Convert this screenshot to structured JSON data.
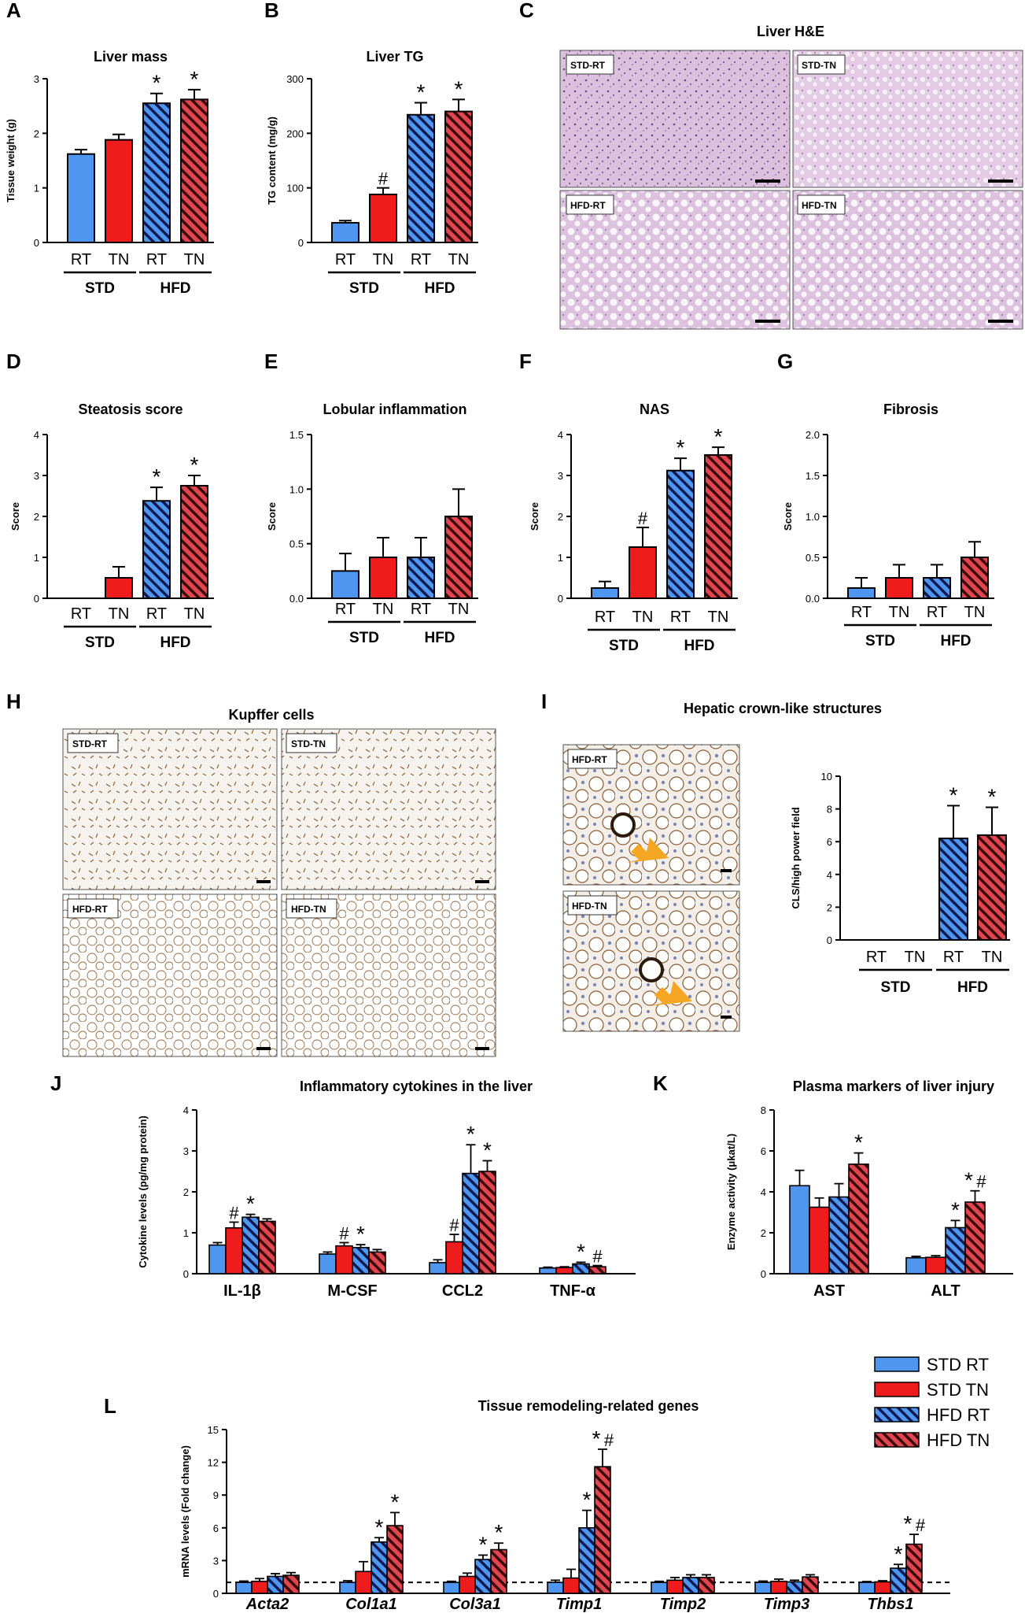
{
  "colors": {
    "std_rt": "#4f96f0",
    "std_tn": "#ee1c1c",
    "hfd_rt": "#4f96f0",
    "hfd_tn": "#e0464f",
    "star": "#000000",
    "arrow": "#f5a623",
    "he_tissue": "#e6cde6",
    "ihc_tissue": "#f7f1ec"
  },
  "panels": {
    "A": "A",
    "B": "B",
    "C": "C",
    "D": "D",
    "E": "E",
    "F": "F",
    "G": "G",
    "H": "H",
    "I": "I",
    "J": "J",
    "K": "K",
    "L": "L"
  },
  "groups": {
    "std": "STD",
    "hfd": "HFD"
  },
  "conditions": {
    "rt": "RT",
    "tn": "TN"
  },
  "legend": [
    "STD RT",
    "STD TN",
    "HFD RT",
    "HFD TN"
  ],
  "micrographs": {
    "he_title": "Liver H&E",
    "he_tags": [
      "STD-RT",
      "STD-TN",
      "HFD-RT",
      "HFD-TN"
    ],
    "kupffer_title": "Kupffer cells",
    "kupffer_tags": [
      "STD-RT",
      "STD-TN",
      "HFD-RT",
      "HFD-TN"
    ],
    "cls_title": "Hepatic crown-like structures",
    "cls_tags": [
      "HFD-RT",
      "HFD-TN"
    ]
  },
  "chart_data": [
    {
      "id": "A",
      "type": "bar",
      "title": "Liver mass",
      "ylabel": "Tissue weight (g)",
      "ylim": [
        0,
        3
      ],
      "yticks": [
        "0",
        "1",
        "2",
        "3"
      ],
      "values": [
        1.62,
        1.88,
        2.55,
        2.62
      ],
      "errors": [
        0.08,
        0.1,
        0.18,
        0.18
      ],
      "annotations": [
        "",
        "",
        "*",
        "*"
      ]
    },
    {
      "id": "B",
      "type": "bar",
      "title": "Liver TG",
      "ylabel": "TG content (mg/g)",
      "ylim": [
        0,
        300
      ],
      "yticks": [
        "0",
        "100",
        "200",
        "300"
      ],
      "values": [
        36,
        88,
        234,
        240
      ],
      "errors": [
        4,
        12,
        22,
        22
      ],
      "annotations": [
        "",
        "#",
        "*",
        "*"
      ]
    },
    {
      "id": "D",
      "type": "bar",
      "title": "Steatosis score",
      "ylabel": "Score",
      "ylim": [
        0,
        4
      ],
      "yticks": [
        "0",
        "1",
        "2",
        "3",
        "4"
      ],
      "values": [
        0,
        0.5,
        2.38,
        2.75
      ],
      "errors": [
        0,
        0.27,
        0.33,
        0.25
      ],
      "annotations": [
        "",
        "",
        "*",
        "*"
      ]
    },
    {
      "id": "E",
      "type": "bar",
      "title": "Lobular inflammation",
      "ylabel": "Score",
      "ylim": [
        0,
        1.5
      ],
      "yticks": [
        "0.0",
        "0.5",
        "1.0",
        "1.5"
      ],
      "values": [
        0.25,
        0.375,
        0.375,
        0.75
      ],
      "errors": [
        0.16,
        0.18,
        0.18,
        0.25
      ],
      "annotations": [
        "",
        "",
        "",
        ""
      ]
    },
    {
      "id": "F",
      "type": "bar",
      "title": "NAS",
      "ylabel": "Score",
      "ylim": [
        0,
        4
      ],
      "yticks": [
        "0",
        "1",
        "2",
        "3",
        "4"
      ],
      "values": [
        0.25,
        1.25,
        3.12,
        3.5
      ],
      "errors": [
        0.16,
        0.48,
        0.3,
        0.19
      ],
      "annotations": [
        "",
        "#",
        "*",
        "*"
      ]
    },
    {
      "id": "G",
      "type": "bar",
      "title": "Fibrosis",
      "ylabel": "Score",
      "ylim": [
        0,
        2
      ],
      "yticks": [
        "0.0",
        "0.5",
        "1.0",
        "1.5",
        "2.0"
      ],
      "values": [
        0.125,
        0.25,
        0.25,
        0.5
      ],
      "errors": [
        0.125,
        0.16,
        0.16,
        0.19
      ],
      "annotations": [
        "",
        "",
        "",
        ""
      ]
    },
    {
      "id": "I",
      "type": "bar",
      "title": "",
      "ylabel": "CLS/high power field",
      "ylim": [
        0,
        10
      ],
      "yticks": [
        "0",
        "2",
        "4",
        "6",
        "8",
        "10"
      ],
      "values": [
        0,
        0,
        6.2,
        6.4
      ],
      "errors": [
        0,
        0,
        2.0,
        1.7
      ],
      "annotations": [
        "",
        "",
        "*",
        "*"
      ]
    },
    {
      "id": "J",
      "type": "grouped_bar",
      "title": "Inflammatory cytokines in the liver",
      "ylabel": "Cytokine levels (pg/mg protein)",
      "ylim": [
        0,
        4
      ],
      "yticks": [
        "0",
        "1",
        "2",
        "3",
        "4"
      ],
      "categories": [
        "IL-1β",
        "M-CSF",
        "CCL2",
        "TNF-α"
      ],
      "series": [
        {
          "name": "STD RT",
          "values": [
            0.7,
            0.48,
            0.27,
            0.14
          ],
          "errors": [
            0.06,
            0.05,
            0.07,
            0.02
          ],
          "annotations": [
            "",
            "",
            "",
            ""
          ]
        },
        {
          "name": "STD TN",
          "values": [
            1.12,
            0.68,
            0.78,
            0.15
          ],
          "errors": [
            0.14,
            0.08,
            0.18,
            0.02
          ],
          "annotations": [
            "#",
            "#",
            "#",
            ""
          ]
        },
        {
          "name": "HFD RT",
          "values": [
            1.38,
            0.64,
            2.45,
            0.24
          ],
          "errors": [
            0.07,
            0.07,
            0.7,
            0.04
          ],
          "annotations": [
            "*",
            "*",
            "*",
            "*"
          ]
        },
        {
          "name": "HFD TN",
          "values": [
            1.28,
            0.53,
            2.5,
            0.17
          ],
          "errors": [
            0.06,
            0.06,
            0.26,
            0.03
          ],
          "annotations": [
            "",
            "",
            "*",
            "#"
          ]
        }
      ]
    },
    {
      "id": "K",
      "type": "grouped_bar",
      "title": "Plasma markers of liver injury",
      "ylabel": "Enzyme activity (μkat/L)",
      "ylim": [
        0,
        8
      ],
      "yticks": [
        "0",
        "2",
        "4",
        "6",
        "8"
      ],
      "categories": [
        "AST",
        "ALT"
      ],
      "series": [
        {
          "name": "STD RT",
          "values": [
            4.3,
            0.78
          ],
          "errors": [
            0.75,
            0.07
          ],
          "annotations": [
            "",
            ""
          ]
        },
        {
          "name": "STD TN",
          "values": [
            3.25,
            0.8
          ],
          "errors": [
            0.45,
            0.08
          ],
          "annotations": [
            "",
            ""
          ]
        },
        {
          "name": "HFD RT",
          "values": [
            3.75,
            2.25
          ],
          "errors": [
            0.65,
            0.35
          ],
          "annotations": [
            "",
            "*"
          ]
        },
        {
          "name": "HFD TN",
          "values": [
            5.35,
            3.5
          ],
          "errors": [
            0.55,
            0.55
          ],
          "annotations": [
            "*",
            "*#"
          ]
        }
      ]
    },
    {
      "id": "L",
      "type": "grouped_bar",
      "title": "Tissue remodeling-related genes",
      "ylabel": "mRNA levels (Fold change)",
      "ylim": [
        0,
        15
      ],
      "yticks": [
        "0",
        "3",
        "6",
        "9",
        "12",
        "15"
      ],
      "reference_line": 1,
      "categories": [
        "Acta2",
        "Col1a1",
        "Col3a1",
        "Timp1",
        "Timp2",
        "Timp3",
        "Thbs1"
      ],
      "series": [
        {
          "name": "STD RT",
          "values": [
            1.0,
            1.0,
            1.0,
            1.0,
            1.0,
            1.0,
            1.0
          ],
          "errors": [
            0.12,
            0.15,
            0.1,
            0.2,
            0.1,
            0.12,
            0.08
          ],
          "annotations": [
            "",
            "",
            "",
            "",
            "",
            "",
            ""
          ]
        },
        {
          "name": "STD TN",
          "values": [
            1.1,
            2.0,
            1.55,
            1.4,
            1.2,
            1.1,
            1.05
          ],
          "errors": [
            0.25,
            0.9,
            0.3,
            0.8,
            0.25,
            0.2,
            0.1
          ],
          "annotations": [
            "",
            "",
            "",
            "",
            "",
            "",
            ""
          ]
        },
        {
          "name": "HFD RT",
          "values": [
            1.55,
            4.7,
            3.1,
            6.0,
            1.45,
            1.05,
            2.3
          ],
          "errors": [
            0.25,
            0.4,
            0.4,
            1.6,
            0.25,
            0.15,
            0.35
          ],
          "annotations": [
            "",
            "*",
            "*",
            "*",
            "",
            "",
            "*"
          ]
        },
        {
          "name": "HFD TN",
          "values": [
            1.65,
            6.2,
            4.0,
            11.6,
            1.45,
            1.5,
            4.5
          ],
          "errors": [
            0.25,
            1.2,
            0.6,
            1.6,
            0.25,
            0.2,
            0.9
          ],
          "annotations": [
            "",
            "*",
            "*",
            "*#",
            "",
            "",
            "*#"
          ]
        }
      ]
    }
  ]
}
